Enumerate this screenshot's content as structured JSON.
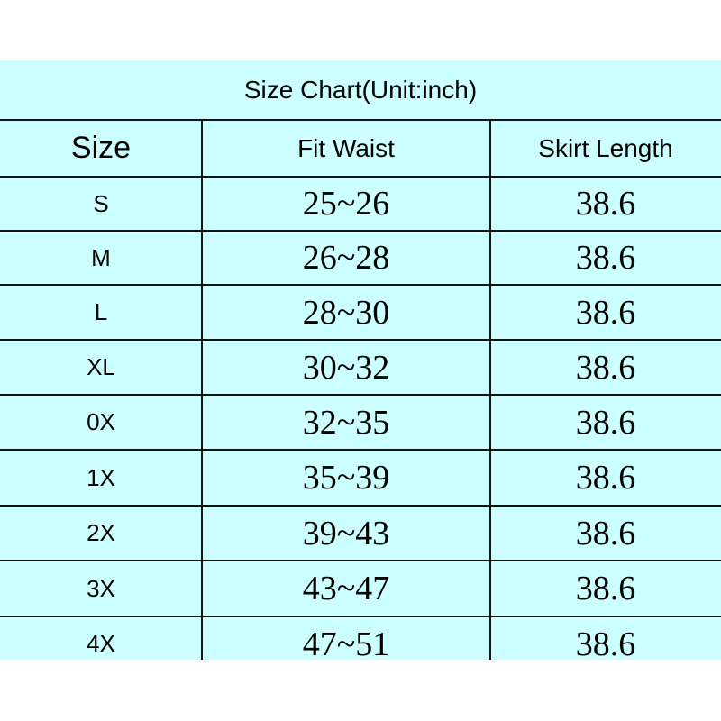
{
  "title": "Size Chart(Unit:inch)",
  "headers": [
    "Size",
    "Fit Waist",
    "Skirt Length"
  ],
  "rows": [
    {
      "size": "S",
      "waist": "25~26",
      "length": "38.6"
    },
    {
      "size": "M",
      "waist": "26~28",
      "length": "38.6"
    },
    {
      "size": "L",
      "waist": "28~30",
      "length": "38.6"
    },
    {
      "size": "XL",
      "waist": "30~32",
      "length": "38.6"
    },
    {
      "size": "0X",
      "waist": "32~35",
      "length": "38.6"
    },
    {
      "size": "1X",
      "waist": "35~39",
      "length": "38.6"
    },
    {
      "size": "2X",
      "waist": "39~43",
      "length": "38.6"
    },
    {
      "size": "3X",
      "waist": "43~47",
      "length": "38.6"
    },
    {
      "size": "4X",
      "waist": "47~51",
      "length": "38.6"
    }
  ],
  "colors": {
    "background": "#ccffff",
    "border": "#111111",
    "text": "#000000"
  }
}
